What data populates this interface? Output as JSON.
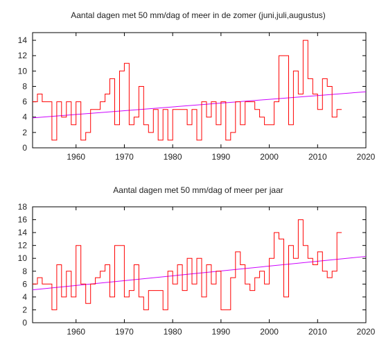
{
  "chart_data": [
    {
      "type": "line",
      "step": true,
      "title": "Aantal dagen met 50 mm/dag of meer in de zomer (juni,juli,augustus)",
      "xlabel": "",
      "ylabel": "",
      "xlim": [
        1951,
        2020
      ],
      "ylim": [
        0,
        15
      ],
      "xticks": [
        1960,
        1970,
        1980,
        1990,
        2000,
        2010,
        2020
      ],
      "yticks": [
        0,
        2,
        4,
        6,
        8,
        10,
        12,
        14
      ],
      "grid": false,
      "legend": "none",
      "series": [
        {
          "color": "#ff0000",
          "x": [
            1951,
            1952,
            1953,
            1954,
            1955,
            1956,
            1957,
            1958,
            1959,
            1960,
            1961,
            1962,
            1963,
            1964,
            1965,
            1966,
            1967,
            1968,
            1969,
            1970,
            1971,
            1972,
            1973,
            1974,
            1975,
            1976,
            1977,
            1978,
            1979,
            1980,
            1981,
            1982,
            1983,
            1984,
            1985,
            1986,
            1987,
            1988,
            1989,
            1990,
            1991,
            1992,
            1993,
            1994,
            1995,
            1996,
            1997,
            1998,
            1999,
            2000,
            2001,
            2002,
            2003,
            2004,
            2005,
            2006,
            2007,
            2008,
            2009,
            2010,
            2011,
            2012,
            2013,
            2014
          ],
          "values": [
            6,
            7,
            6,
            6,
            1,
            6,
            4,
            6,
            3,
            6,
            1,
            2,
            5,
            5,
            6,
            7,
            9,
            3,
            10,
            11,
            3,
            4,
            8,
            3,
            2,
            5,
            1,
            5,
            1,
            5,
            5,
            5,
            3,
            5,
            1,
            6,
            4,
            6,
            3,
            6,
            1,
            2,
            6,
            3,
            6,
            6,
            5,
            4,
            3,
            3,
            6,
            12,
            12,
            3,
            10,
            7,
            14,
            9,
            7,
            5,
            9,
            8,
            4,
            5
          ]
        }
      ],
      "trend": {
        "color": "#cc00ff",
        "x": [
          1951,
          2020
        ],
        "y": [
          3.9,
          7.3
        ]
      }
    },
    {
      "type": "line",
      "step": true,
      "title": "Aantal dagen met 50 mm/dag of meer per jaar",
      "xlabel": "",
      "ylabel": "",
      "xlim": [
        1951,
        2020
      ],
      "ylim": [
        0,
        18
      ],
      "xticks": [
        1960,
        1970,
        1980,
        1990,
        2000,
        2010,
        2020
      ],
      "yticks": [
        0,
        2,
        4,
        6,
        8,
        10,
        12,
        14,
        16,
        18
      ],
      "grid": false,
      "legend": "none",
      "series": [
        {
          "color": "#ff0000",
          "x": [
            1951,
            1952,
            1953,
            1954,
            1955,
            1956,
            1957,
            1958,
            1959,
            1960,
            1961,
            1962,
            1963,
            1964,
            1965,
            1966,
            1967,
            1968,
            1969,
            1970,
            1971,
            1972,
            1973,
            1974,
            1975,
            1976,
            1977,
            1978,
            1979,
            1980,
            1981,
            1982,
            1983,
            1984,
            1985,
            1986,
            1987,
            1988,
            1989,
            1990,
            1991,
            1992,
            1993,
            1994,
            1995,
            1996,
            1997,
            1998,
            1999,
            2000,
            2001,
            2002,
            2003,
            2004,
            2005,
            2006,
            2007,
            2008,
            2009,
            2010,
            2011,
            2012,
            2013,
            2014
          ],
          "values": [
            6,
            7,
            6,
            6,
            2,
            9,
            4,
            8,
            4,
            12,
            6,
            3,
            6,
            7,
            8,
            9,
            4,
            12,
            12,
            4,
            5,
            9,
            4,
            2,
            5,
            5,
            5,
            2,
            8,
            6,
            9,
            5,
            10,
            6,
            10,
            4,
            9,
            6,
            8,
            2,
            2,
            7,
            11,
            9,
            6,
            5,
            7,
            8,
            6,
            10,
            14,
            13,
            4,
            12,
            10,
            16,
            12,
            10,
            9,
            11,
            8,
            7,
            8,
            14
          ]
        }
      ],
      "trend": {
        "color": "#cc00ff",
        "x": [
          1951,
          2020
        ],
        "y": [
          5.1,
          10.3
        ]
      }
    }
  ]
}
